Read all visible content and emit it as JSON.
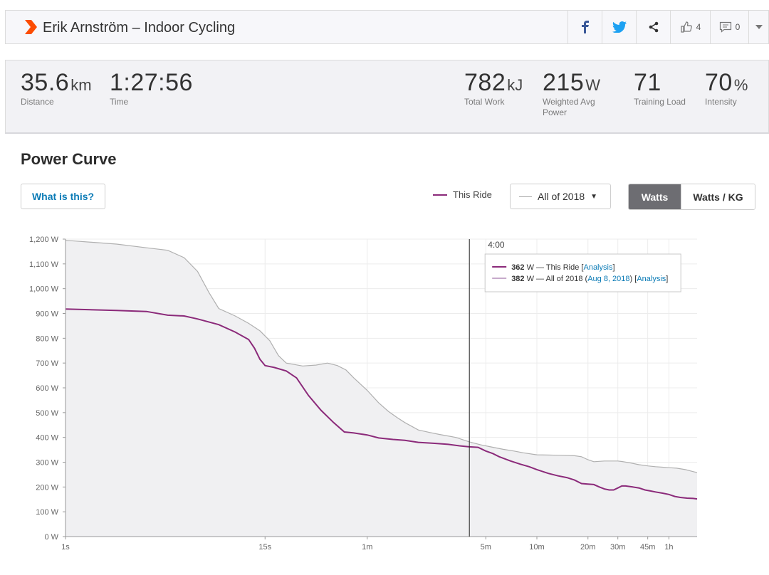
{
  "header": {
    "title": "Erik Arnström – Indoor Cycling",
    "kudos_count": "4",
    "comment_count": "0",
    "icons": [
      "facebook-icon",
      "twitter-icon",
      "share-icon",
      "thumbs-up-icon",
      "comment-icon",
      "chevron-down-icon"
    ]
  },
  "stats": [
    {
      "value": "35.6",
      "unit": "km",
      "label": "Distance"
    },
    {
      "value": "1:27:56",
      "unit": "",
      "label": "Time"
    },
    {
      "value": "782",
      "unit": "kJ",
      "label": "Total Work"
    },
    {
      "value": "215",
      "unit": "W",
      "label": "Weighted Avg Power"
    },
    {
      "value": "71",
      "unit": "",
      "label": "Training Load"
    },
    {
      "value": "70",
      "unit": "%",
      "label": "Intensity"
    }
  ],
  "power_curve": {
    "title": "Power Curve",
    "what_is_this": "What is this?",
    "legend_this_ride": "This Ride",
    "compare_select": "All of 2018",
    "toggle_watts": "Watts",
    "toggle_watts_kg": "Watts / KG"
  },
  "tooltip": {
    "time": "4:00",
    "this_ride_value": "362",
    "this_ride_text": " W — This Ride [",
    "this_ride_link": "Analysis",
    "year_value": "382",
    "year_text": " W — All of 2018 (",
    "year_date": "Aug 8, 2018",
    "year_mid": ") [",
    "year_link": "Analysis",
    "close_bracket": "]"
  },
  "colors": {
    "this_ride": "#8b2a7a",
    "all_year": "#b0b0b0",
    "accent_link": "#0b7bb6",
    "logo": "#fc4c02"
  },
  "chart_data": {
    "type": "line",
    "xscale": "log",
    "ylabel": "",
    "xlabel": "",
    "ylim": [
      0,
      1200
    ],
    "y_ticks": [
      "0 W",
      "100 W",
      "200 W",
      "300 W",
      "400 W",
      "500 W",
      "600 W",
      "700 W",
      "800 W",
      "900 W",
      "1,000 W",
      "1,100 W",
      "1,200 W"
    ],
    "x_ticks": [
      {
        "label": "1s",
        "sec": 1
      },
      {
        "label": "15s",
        "sec": 15
      },
      {
        "label": "1m",
        "sec": 60
      },
      {
        "label": "5m",
        "sec": 300
      },
      {
        "label": "10m",
        "sec": 600
      },
      {
        "label": "20m",
        "sec": 1200
      },
      {
        "label": "30m",
        "sec": 1800
      },
      {
        "label": "45m",
        "sec": 2700
      },
      {
        "label": "1h",
        "sec": 3600
      }
    ],
    "marker_sec": 240,
    "series": [
      {
        "name": "This Ride",
        "points": [
          [
            1,
            918
          ],
          [
            2,
            912
          ],
          [
            3,
            908
          ],
          [
            4,
            893
          ],
          [
            5,
            890
          ],
          [
            6,
            878
          ],
          [
            8,
            855
          ],
          [
            10,
            825
          ],
          [
            12,
            795
          ],
          [
            13,
            760
          ],
          [
            14,
            715
          ],
          [
            15,
            690
          ],
          [
            17,
            682
          ],
          [
            20,
            668
          ],
          [
            23,
            640
          ],
          [
            27,
            570
          ],
          [
            32,
            510
          ],
          [
            38,
            460
          ],
          [
            44,
            422
          ],
          [
            50,
            418
          ],
          [
            60,
            410
          ],
          [
            70,
            398
          ],
          [
            85,
            392
          ],
          [
            100,
            388
          ],
          [
            120,
            380
          ],
          [
            150,
            376
          ],
          [
            180,
            372
          ],
          [
            210,
            366
          ],
          [
            240,
            362
          ],
          [
            270,
            360
          ],
          [
            300,
            345
          ],
          [
            330,
            335
          ],
          [
            360,
            322
          ],
          [
            420,
            305
          ],
          [
            480,
            292
          ],
          [
            540,
            282
          ],
          [
            600,
            270
          ],
          [
            700,
            255
          ],
          [
            800,
            245
          ],
          [
            900,
            238
          ],
          [
            1000,
            228
          ],
          [
            1100,
            214
          ],
          [
            1200,
            212
          ],
          [
            1300,
            210
          ],
          [
            1400,
            200
          ],
          [
            1500,
            192
          ],
          [
            1600,
            188
          ],
          [
            1700,
            188
          ],
          [
            1800,
            196
          ],
          [
            1900,
            204
          ],
          [
            2000,
            204
          ],
          [
            2200,
            200
          ],
          [
            2400,
            196
          ],
          [
            2600,
            188
          ],
          [
            2800,
            184
          ],
          [
            3000,
            180
          ],
          [
            3300,
            175
          ],
          [
            3600,
            170
          ],
          [
            3900,
            162
          ],
          [
            4200,
            158
          ],
          [
            4600,
            155
          ],
          [
            5000,
            154
          ],
          [
            5276,
            152
          ]
        ]
      },
      {
        "name": "All of 2018",
        "points": [
          [
            1,
            1195
          ],
          [
            2,
            1180
          ],
          [
            3,
            1165
          ],
          [
            4,
            1155
          ],
          [
            5,
            1125
          ],
          [
            6,
            1070
          ],
          [
            7,
            985
          ],
          [
            8,
            920
          ],
          [
            10,
            890
          ],
          [
            12,
            860
          ],
          [
            14,
            830
          ],
          [
            16,
            790
          ],
          [
            18,
            730
          ],
          [
            20,
            700
          ],
          [
            25,
            688
          ],
          [
            30,
            692
          ],
          [
            35,
            700
          ],
          [
            40,
            690
          ],
          [
            45,
            672
          ],
          [
            50,
            640
          ],
          [
            60,
            590
          ],
          [
            70,
            540
          ],
          [
            80,
            505
          ],
          [
            90,
            480
          ],
          [
            100,
            460
          ],
          [
            120,
            430
          ],
          [
            140,
            420
          ],
          [
            160,
            412
          ],
          [
            200,
            400
          ],
          [
            240,
            382
          ],
          [
            280,
            370
          ],
          [
            320,
            362
          ],
          [
            380,
            352
          ],
          [
            440,
            345
          ],
          [
            500,
            338
          ],
          [
            600,
            330
          ],
          [
            800,
            328
          ],
          [
            1000,
            326
          ],
          [
            1100,
            322
          ],
          [
            1200,
            310
          ],
          [
            1300,
            302
          ],
          [
            1500,
            305
          ],
          [
            1800,
            305
          ],
          [
            1900,
            303
          ],
          [
            2100,
            298
          ],
          [
            2400,
            290
          ],
          [
            2700,
            285
          ],
          [
            3000,
            282
          ],
          [
            3300,
            280
          ],
          [
            3600,
            278
          ],
          [
            4000,
            276
          ],
          [
            4500,
            270
          ],
          [
            5000,
            262
          ],
          [
            5276,
            258
          ]
        ]
      }
    ]
  }
}
